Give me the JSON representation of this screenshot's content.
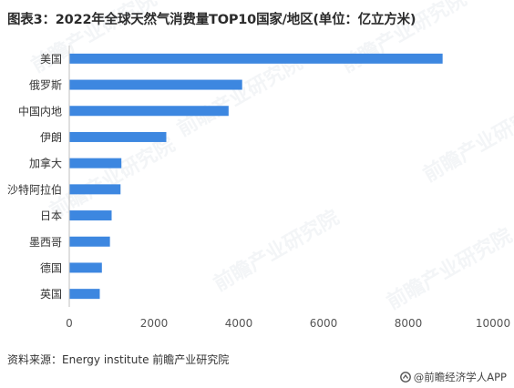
{
  "title": "图表3：2022年全球天然气消费量TOP10国家/地区(单位：亿立方米)",
  "source": "资料来源：Energy institute 前瞻产业研究院",
  "credit": "@前瞻经济学人APP",
  "watermark": "前瞻产业研究院",
  "colors": {
    "bar": "#3d87e0",
    "axis": "#bfbfbf",
    "tick_text": "#555555",
    "label_text": "#333333"
  },
  "chart_data": {
    "type": "bar",
    "orientation": "horizontal",
    "categories": [
      "美国",
      "俄罗斯",
      "中国内地",
      "伊朗",
      "加拿大",
      "沙特阿拉伯",
      "日本",
      "墨西哥",
      "德国",
      "英国"
    ],
    "values": [
      8810,
      4080,
      3760,
      2290,
      1230,
      1210,
      1000,
      960,
      770,
      720
    ],
    "xlim": [
      0,
      10000
    ],
    "xticks": [
      "0",
      "2000",
      "4000",
      "6000",
      "8000",
      "10000"
    ],
    "xtick_values": [
      0,
      2000,
      4000,
      6000,
      8000,
      10000
    ],
    "grid": false,
    "legend": "none"
  }
}
